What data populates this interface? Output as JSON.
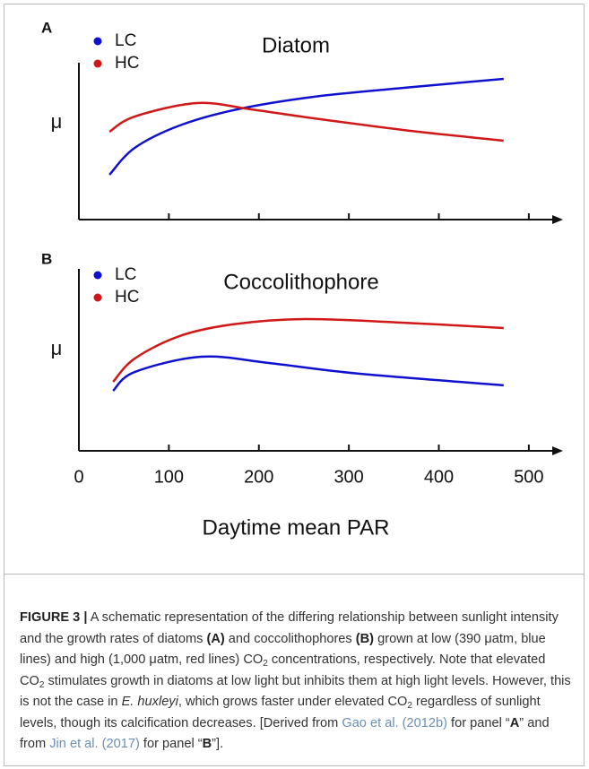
{
  "chart_data": [
    {
      "type": "line",
      "panel": "A",
      "title": "Diatom",
      "ylabel": "μ",
      "xlim": [
        0,
        530
      ],
      "ylim": [
        0,
        100
      ],
      "xticks": [
        0,
        100,
        200,
        300,
        400,
        500
      ],
      "show_xtick_labels": false,
      "legend": "upper left",
      "series": [
        {
          "name": "LC",
          "color": "#1010d0",
          "x": [
            34,
            62,
            112,
            176,
            261,
            361,
            472
          ],
          "values": [
            28.6,
            45.7,
            60,
            70.3,
            78.3,
            84,
            89.7
          ]
        },
        {
          "name": "HC",
          "color": "#d01818",
          "x": [
            34,
            62,
            131,
            191,
            261,
            361,
            472
          ],
          "values": [
            56,
            65.7,
            74.3,
            70.3,
            64.6,
            57.1,
            50.3
          ]
        }
      ]
    },
    {
      "type": "line",
      "panel": "B",
      "title": "Coccolithophore",
      "ylabel": "μ",
      "xlabel": "Daytime mean PAR",
      "xlim": [
        0,
        530
      ],
      "ylim": [
        0,
        100
      ],
      "xticks": [
        0,
        100,
        200,
        300,
        400,
        500
      ],
      "show_xtick_labels": true,
      "legend": "upper left",
      "series": [
        {
          "name": "LC",
          "color": "#1010d0",
          "x": [
            38,
            62,
            136,
            211,
            311,
            472
          ],
          "values": [
            33,
            43.3,
            51.7,
            48.3,
            42.4,
            36
          ]
        },
        {
          "name": "HC",
          "color": "#d01818",
          "x": [
            38,
            62,
            112,
            171,
            251,
            361,
            472
          ],
          "values": [
            37.9,
            50.7,
            63.1,
            69.5,
            72.4,
            70.4,
            67.5
          ]
        }
      ]
    }
  ],
  "caption": [
    {
      "text": "FIGURE 3 |",
      "style": "bold"
    },
    {
      "text": " A schematic representation of the differing relationship between sunlight intensity and the growth rates of diatoms ",
      "style": "plain"
    },
    {
      "text": "(A)",
      "style": "bold"
    },
    {
      "text": " and coccolithophores ",
      "style": "plain"
    },
    {
      "text": "(B)",
      "style": "bold"
    },
    {
      "text": " grown at low (390 μatm, blue lines) and high (1,000 μatm, red lines) CO",
      "style": "plain"
    },
    {
      "text": "2",
      "style": "sub"
    },
    {
      "text": " concentrations, respectively. Note that elevated CO",
      "style": "plain"
    },
    {
      "text": "2",
      "style": "sub"
    },
    {
      "text": " stimulates growth in diatoms at low light but inhibits them at high light levels. However, this is not the case in ",
      "style": "plain"
    },
    {
      "text": "E. huxleyi",
      "style": "italic"
    },
    {
      "text": ", which grows faster under elevated CO",
      "style": "plain"
    },
    {
      "text": "2",
      "style": "sub"
    },
    {
      "text": " regardless of sunlight levels, though its calcification decreases. [Derived from ",
      "style": "plain"
    },
    {
      "text": "Gao et al. (2012b)",
      "style": "link"
    },
    {
      "text": " for panel “",
      "style": "plain"
    },
    {
      "text": "A",
      "style": "bold"
    },
    {
      "text": "” and from ",
      "style": "plain"
    },
    {
      "text": "Jin et al. (2017)",
      "style": "link"
    },
    {
      "text": " for panel “",
      "style": "plain"
    },
    {
      "text": "B",
      "style": "bold"
    },
    {
      "text": "”].",
      "style": "plain"
    }
  ]
}
